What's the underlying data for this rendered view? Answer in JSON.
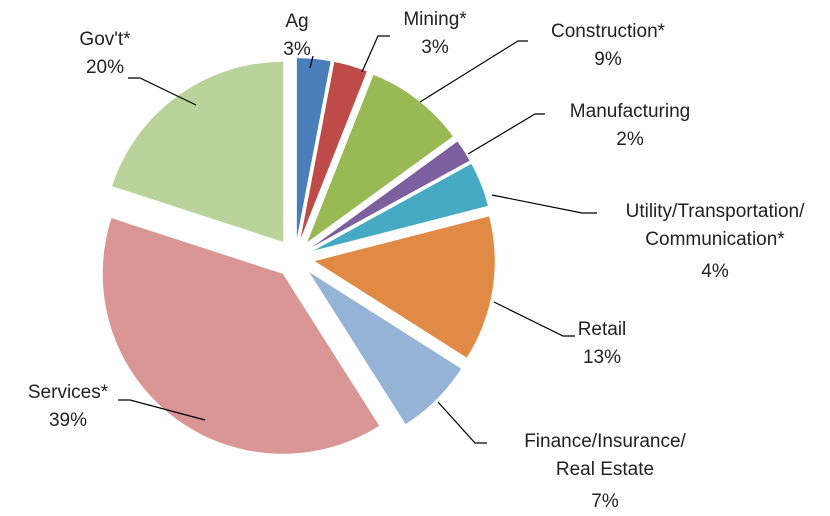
{
  "chart_data": {
    "type": "pie",
    "categories": [
      "Ag",
      "Mining*",
      "Construction*",
      "Manufacturing",
      "Utility/Transportation/Communication*",
      "Retail",
      "Finance/Insurance/Real Estate",
      "Services*",
      "Gov't*"
    ],
    "values": [
      3,
      3,
      9,
      2,
      4,
      13,
      7,
      39,
      20
    ],
    "value_labels": [
      "3%",
      "3%",
      "9%",
      "2%",
      "4%",
      "13%",
      "7%",
      "39%",
      "20%"
    ],
    "colors": [
      "#4a7ebb",
      "#be4b48",
      "#98b954",
      "#7d5fa0",
      "#46aac5",
      "#e08a45",
      "#95b3d7",
      "#d99694",
      "#bad39a"
    ]
  }
}
